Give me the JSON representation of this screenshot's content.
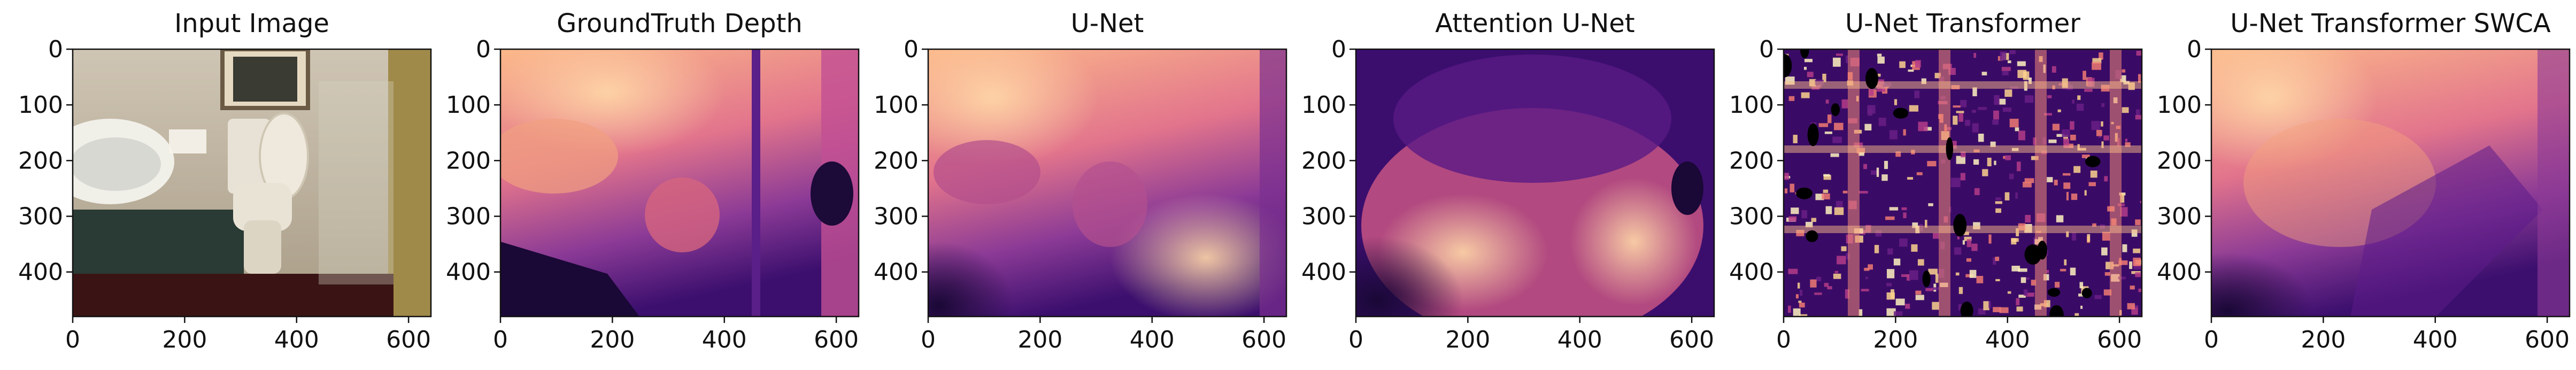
{
  "figure": {
    "panels": [
      {
        "title": "Input Image",
        "kind": "photo"
      },
      {
        "title": "GroundTruth Depth",
        "kind": "depth-gt"
      },
      {
        "title": "U-Net",
        "kind": "depth-unet"
      },
      {
        "title": "Attention U-Net",
        "kind": "depth-attn"
      },
      {
        "title": "U-Net Transformer",
        "kind": "depth-noisy"
      },
      {
        "title": "U-Net Transformer SWCA",
        "kind": "depth-swca"
      }
    ],
    "x_ticks": [
      "0",
      "200",
      "400",
      "600"
    ],
    "y_ticks": [
      "0",
      "100",
      "200",
      "300",
      "400"
    ],
    "x_tick_values": [
      0,
      200,
      400,
      600
    ],
    "y_tick_values": [
      0,
      100,
      200,
      300,
      400
    ],
    "x_range": [
      0,
      640
    ],
    "y_range": [
      0,
      480
    ],
    "colormap": "magma"
  }
}
